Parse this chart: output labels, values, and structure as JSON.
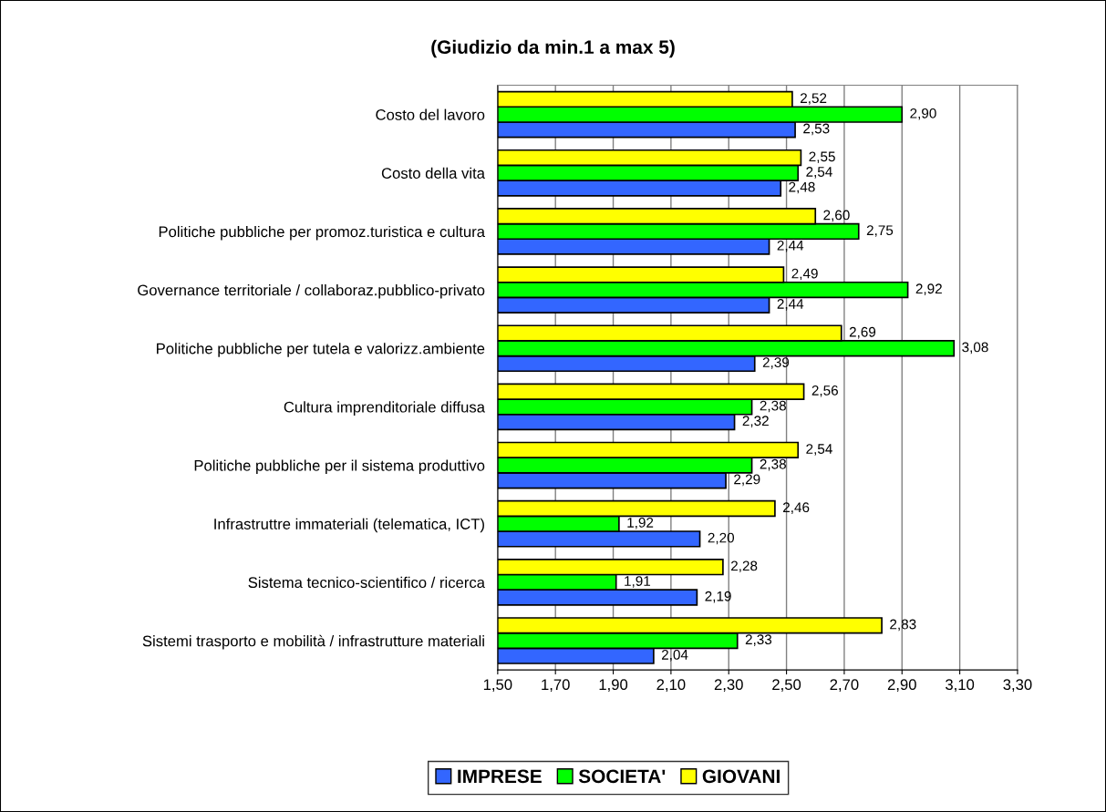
{
  "chart_data": {
    "type": "bar",
    "orientation": "horizontal",
    "title": "(Giudizio da min.1 a max 5)",
    "categories": [
      "Costo del lavoro",
      "Costo della vita",
      "Politiche pubbliche per promoz.turistica e cultura",
      "Governance territoriale / collaboraz.pubblico-privato",
      "Politiche pubbliche per tutela e valorizz.ambiente",
      "Cultura imprenditoriale diffusa",
      "Politiche pubbliche per il sistema produttivo",
      "Infrastruttre immateriali (telematica, ICT)",
      "Sistema tecnico-scientifico / ricerca",
      "Sistemi trasporto e mobilità / infrastrutture materiali"
    ],
    "series": [
      {
        "name": "IMPRESE",
        "color": "#3366ff",
        "values": [
          2.53,
          2.48,
          2.44,
          2.44,
          2.39,
          2.32,
          2.29,
          2.2,
          2.19,
          2.04
        ],
        "value_labels": [
          "2,53",
          "2,48",
          "2,44",
          "2,44",
          "2,39",
          "2,32",
          "2,29",
          "2,20",
          "2,19",
          "2,04"
        ]
      },
      {
        "name": "SOCIETA'",
        "color": "#00ff00",
        "values": [
          2.9,
          2.54,
          2.75,
          2.92,
          3.08,
          2.38,
          2.38,
          1.92,
          1.91,
          2.33
        ],
        "value_labels": [
          "2,90",
          "2,54",
          "2,75",
          "2,92",
          "3,08",
          "2,38",
          "2,38",
          "1,92",
          "1,91",
          "2,33"
        ]
      },
      {
        "name": "GIOVANI",
        "color": "#ffff00",
        "values": [
          2.52,
          2.55,
          2.6,
          2.49,
          2.69,
          2.56,
          2.54,
          2.46,
          2.28,
          2.83
        ],
        "value_labels": [
          "2,52",
          "2,55",
          "2,60",
          "2,49",
          "2,69",
          "2,56",
          "2,54",
          "2,46",
          "2,28",
          "2,83"
        ]
      }
    ],
    "xlim": [
      1.5,
      3.3
    ],
    "xticks": [
      {
        "value": 1.5,
        "label": "1,50"
      },
      {
        "value": 1.7,
        "label": "1,70"
      },
      {
        "value": 1.9,
        "label": "1,90"
      },
      {
        "value": 2.1,
        "label": "2,10"
      },
      {
        "value": 2.3,
        "label": "2,30"
      },
      {
        "value": 2.5,
        "label": "2,50"
      },
      {
        "value": 2.7,
        "label": "2,70"
      },
      {
        "value": 2.9,
        "label": "2,90"
      },
      {
        "value": 3.1,
        "label": "3,10"
      },
      {
        "value": 3.3,
        "label": "3,30"
      }
    ],
    "grid": "x",
    "legend": "bottom"
  }
}
